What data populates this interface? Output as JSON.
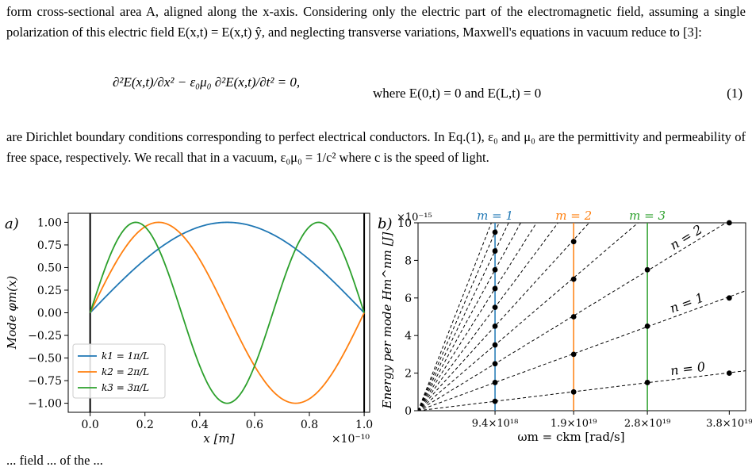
{
  "paragraphs": {
    "intro": "form cross-sectional area A, aligned along the x-axis. Considering only the electric part of the electromagnetic field, assuming a single polarization of this electric field E(x,t) = E(x,t) ŷ, and neglecting transverse variations, Maxwell's equations in vacuum reduce to [3]:",
    "after": "are Dirichlet boundary conditions corresponding to perfect electrical conductors. In Eq.(1), ε₀ and μ₀ are the permittivity and permeability of free space, respectively. We recall that in a vacuum, ε₀μ₀ = 1/c² where c is the speed of light.",
    "cutoff": "... field ... of the ..."
  },
  "equation": {
    "lhs": "∂²E(x,t)/∂x² − ε₀μ₀ ∂²E(x,t)/∂t² = 0,",
    "condition": "where E(0,t) = 0 and E(L,t) = 0",
    "number": "(1)"
  },
  "chart_data": [
    {
      "panel": "a)",
      "type": "line",
      "xlabel": "x [m]",
      "ylabel": "Mode φm(x)",
      "x_multiplier": "×10⁻¹⁰",
      "xlim": [
        -0.08,
        1.02
      ],
      "ylim": [
        -1.1,
        1.1
      ],
      "xticks": [
        "0.0",
        "0.2",
        "0.4",
        "0.6",
        "0.8",
        "1.0"
      ],
      "yticks": [
        "1.00",
        "0.75",
        "0.50",
        "0.25",
        "0.00",
        "−0.25",
        "−0.50",
        "−0.75",
        "−1.00"
      ],
      "ytick_values": [
        1.0,
        0.75,
        0.5,
        0.25,
        0.0,
        -0.25,
        -0.5,
        -0.75,
        -1.0
      ],
      "vlines": [
        0.0,
        1.0
      ],
      "series": [
        {
          "name": "k1 = 1π/L",
          "m": 1,
          "formula": "sin(mπx/L)",
          "color": "#1f77b4"
        },
        {
          "name": "k2 = 2π/L",
          "m": 2,
          "formula": "sin(mπx/L)",
          "color": "#ff7f0e"
        },
        {
          "name": "k3 = 3π/L",
          "m": 3,
          "formula": "sin(mπx/L)",
          "color": "#2ca02c"
        }
      ],
      "legend": "lower-left"
    },
    {
      "panel": "b)",
      "type": "scatter",
      "xlabel": "ωm = ckm [rad/s]",
      "ylabel": "Energy per mode Hm^nm [J]",
      "y_multiplier": "×10⁻¹⁵",
      "xlim": [
        0.0,
        4e+19
      ],
      "ylim": [
        0,
        10
      ],
      "xticks": [
        "9.4×10¹⁸",
        "1.9×10¹⁹",
        "2.8×10¹⁹",
        "3.8×10¹⁹"
      ],
      "xtick_values": [
        9.4e+18,
        1.9e+19,
        2.8e+19,
        3.8e+19
      ],
      "yticks": [
        "0",
        "2",
        "4",
        "6",
        "8",
        "10"
      ],
      "ytick_values": [
        0,
        2,
        4,
        6,
        8,
        10
      ],
      "mode_lines": [
        {
          "label": "m = 1",
          "x": 9.4e+18,
          "color": "#1f77b4"
        },
        {
          "label": "m = 2",
          "x": 1.9e+19,
          "color": "#ff7f0e"
        },
        {
          "label": "m = 3",
          "x": 2.8e+19,
          "color": "#2ca02c"
        }
      ],
      "points": [
        {
          "x": 9.4e+18,
          "y": 0.5
        },
        {
          "x": 9.4e+18,
          "y": 1.5
        },
        {
          "x": 9.4e+18,
          "y": 2.5
        },
        {
          "x": 9.4e+18,
          "y": 3.5
        },
        {
          "x": 9.4e+18,
          "y": 4.5
        },
        {
          "x": 9.4e+18,
          "y": 5.5
        },
        {
          "x": 9.4e+18,
          "y": 6.5
        },
        {
          "x": 9.4e+18,
          "y": 7.5
        },
        {
          "x": 9.4e+18,
          "y": 8.5
        },
        {
          "x": 9.4e+18,
          "y": 9.5
        },
        {
          "x": 1.9e+19,
          "y": 1.0
        },
        {
          "x": 1.9e+19,
          "y": 3.0
        },
        {
          "x": 1.9e+19,
          "y": 5.0
        },
        {
          "x": 1.9e+19,
          "y": 7.0
        },
        {
          "x": 1.9e+19,
          "y": 9.0
        },
        {
          "x": 2.8e+19,
          "y": 1.5
        },
        {
          "x": 2.8e+19,
          "y": 4.5
        },
        {
          "x": 2.8e+19,
          "y": 7.5
        },
        {
          "x": 3.8e+19,
          "y": 2.0
        },
        {
          "x": 3.8e+19,
          "y": 6.0
        },
        {
          "x": 3.8e+19,
          "y": 10.0
        }
      ],
      "fan_slopes": [
        1,
        3,
        5,
        7,
        9,
        11,
        13,
        15,
        17,
        19,
        21
      ],
      "fan_slope_unit": "ħ/2 per rad/s (y = (n+½)ħω)",
      "n_labels": [
        "n = 0",
        "n = 1",
        "n = 2"
      ]
    }
  ]
}
